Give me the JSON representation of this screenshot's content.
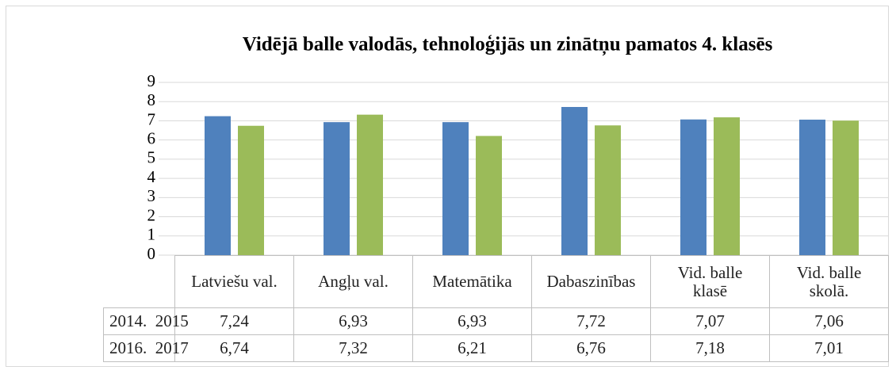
{
  "chart_data": {
    "type": "bar",
    "title": "Vidējā balle valodās, tehnoloģijās un zinātņu pamatos 4. klasēs",
    "categories": [
      "Latviešu val.",
      "Angļu val.",
      "Matemātika",
      "Dabaszinības",
      "Vid. balle klasē",
      "Vid. balle skolā."
    ],
    "series": [
      {
        "name": "2014.  2015",
        "color": "#4f81bd",
        "values": [
          7.24,
          6.93,
          6.93,
          7.72,
          7.07,
          7.06
        ],
        "value_labels": [
          "7,24",
          "6,93",
          "6,93",
          "7,72",
          "7,07",
          "7,06"
        ]
      },
      {
        "name": "2016.  2017",
        "color": "#9bbb59",
        "values": [
          6.74,
          7.32,
          6.21,
          6.76,
          7.18,
          7.01
        ],
        "value_labels": [
          "6,74",
          "7,32",
          "6,21",
          "6,76",
          "7,18",
          "7,01"
        ]
      }
    ],
    "ylim": [
      0,
      9
    ],
    "yticks": [
      0,
      1,
      2,
      3,
      4,
      5,
      6,
      7,
      8,
      9
    ],
    "grid": true
  }
}
